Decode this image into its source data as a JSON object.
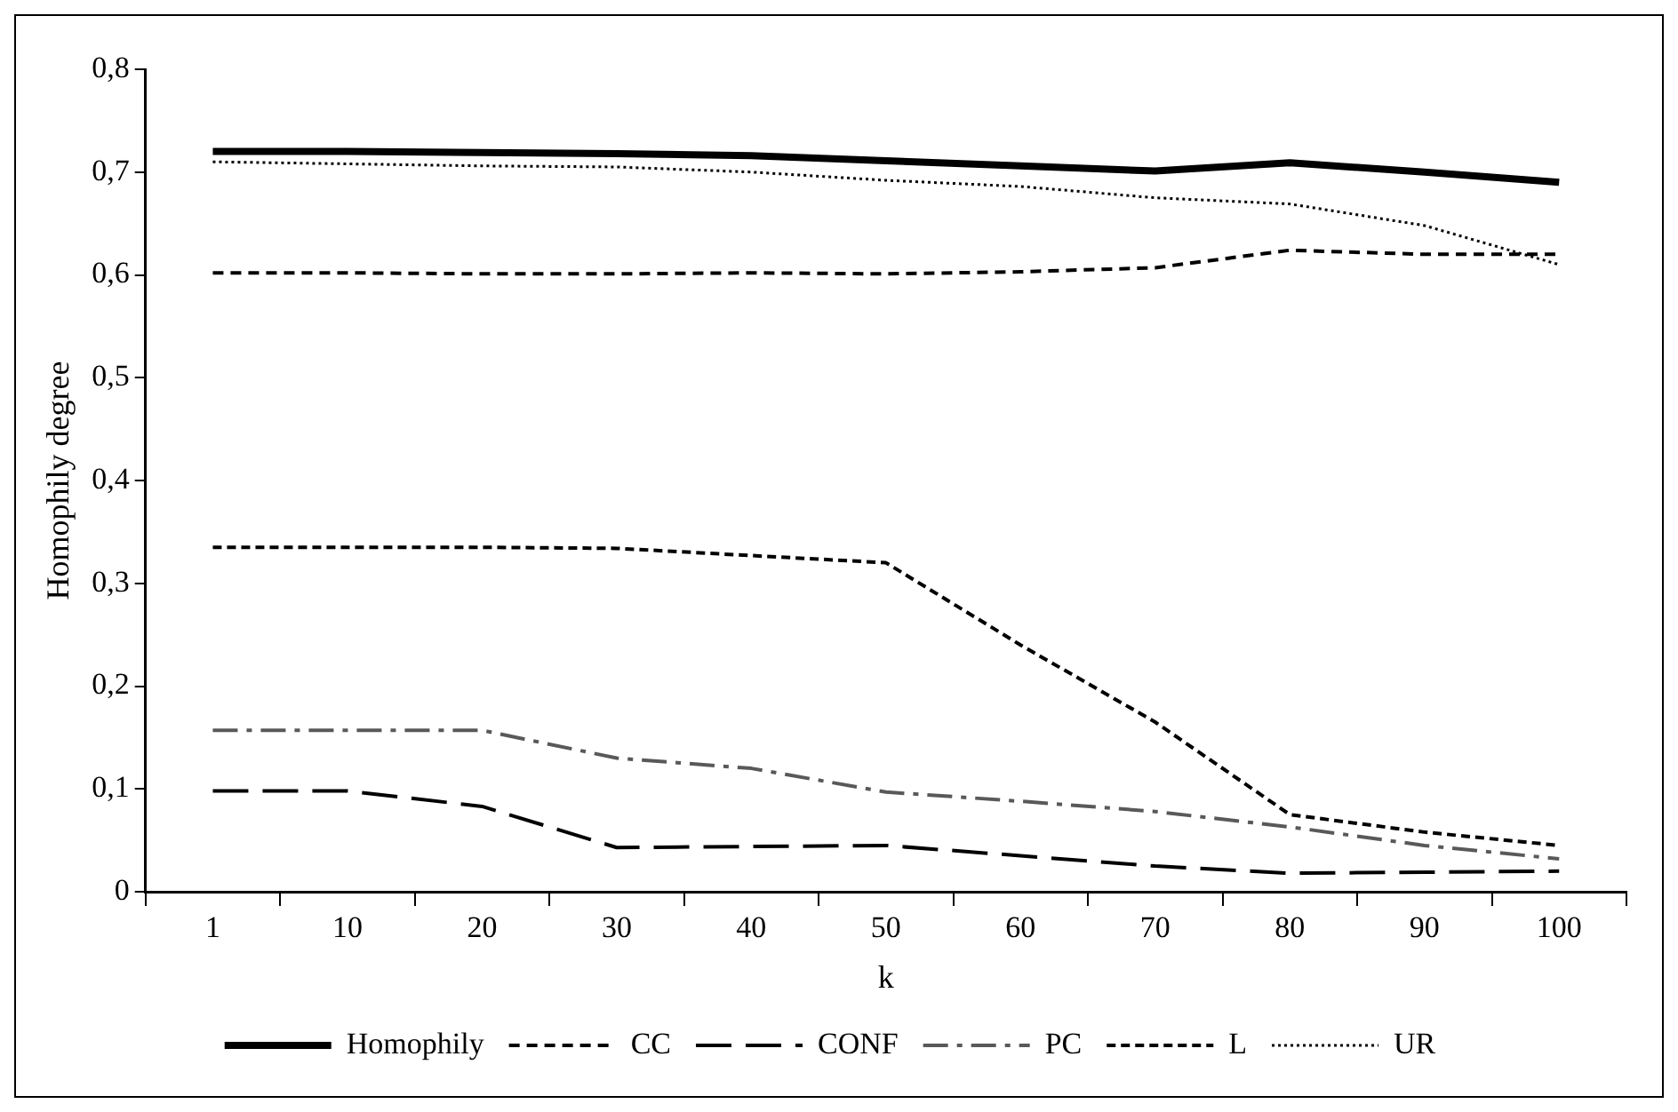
{
  "chart_data": {
    "type": "line",
    "xlabel": "k",
    "ylabel": "Homophily degree",
    "categories": [
      "1",
      "10",
      "20",
      "30",
      "40",
      "50",
      "60",
      "70",
      "80",
      "90",
      "100"
    ],
    "ylim": [
      0,
      0.8
    ],
    "yticks": [
      {
        "value": 0,
        "label": "0"
      },
      {
        "value": 0.1,
        "label": "0,1"
      },
      {
        "value": 0.2,
        "label": "0,2"
      },
      {
        "value": 0.3,
        "label": "0,3"
      },
      {
        "value": 0.4,
        "label": "0,4"
      },
      {
        "value": 0.5,
        "label": "0,5"
      },
      {
        "value": 0.6,
        "label": "0,6"
      },
      {
        "value": 0.7,
        "label": "0,7"
      },
      {
        "value": 0.8,
        "label": "0,8"
      }
    ],
    "grid": false,
    "legend": "bottom",
    "marker": "none",
    "series": [
      {
        "name": "Homophily",
        "color": "#000000",
        "line_style": "solid",
        "values": [
          0.72,
          0.72,
          0.719,
          0.718,
          0.716,
          0.711,
          0.706,
          0.701,
          0.709,
          0.7,
          0.69
        ]
      },
      {
        "name": "CC",
        "color": "#000000",
        "line_style": "dashed",
        "values": [
          0.602,
          0.602,
          0.601,
          0.601,
          0.602,
          0.601,
          0.603,
          0.607,
          0.624,
          0.62,
          0.62
        ]
      },
      {
        "name": "CONF",
        "color": "#000000",
        "line_style": "dashed",
        "values": [
          0.098,
          0.098,
          0.083,
          0.043,
          0.044,
          0.045,
          0.035,
          0.025,
          0.018,
          0.019,
          0.02
        ]
      },
      {
        "name": "PC",
        "color": "#595959",
        "line_style": "dashed",
        "values": [
          0.157,
          0.157,
          0.157,
          0.13,
          0.12,
          0.097,
          0.088,
          0.078,
          0.063,
          0.045,
          0.032
        ]
      },
      {
        "name": "L",
        "color": "#000000",
        "line_style": "dashed",
        "values": [
          0.335,
          0.335,
          0.335,
          0.334,
          0.327,
          0.32,
          0.24,
          0.165,
          0.075,
          0.058,
          0.045
        ]
      },
      {
        "name": "UR",
        "color": "#000000",
        "line_style": "dotted",
        "values": [
          0.71,
          0.708,
          0.706,
          0.705,
          0.7,
          0.692,
          0.686,
          0.675,
          0.669,
          0.648,
          0.61
        ]
      }
    ]
  }
}
